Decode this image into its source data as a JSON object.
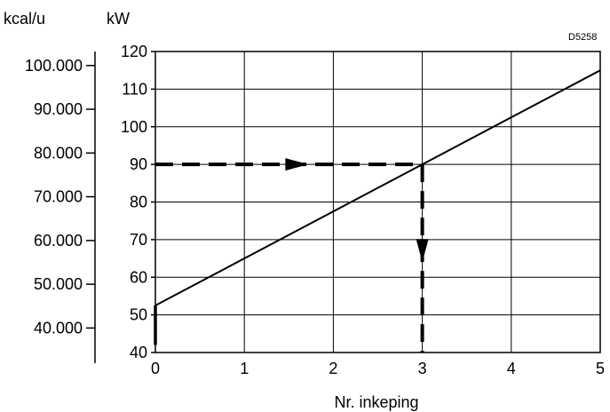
{
  "chart_data": {
    "type": "line",
    "reference_code": "D5258",
    "xlabel": "Nr. inkeping",
    "xlim": [
      0,
      5
    ],
    "x_ticks": [
      "0",
      "1",
      "2",
      "3",
      "4",
      "5"
    ],
    "y_right": {
      "unit": "kW",
      "ylim": [
        40,
        120
      ],
      "ticks": [
        "40",
        "50",
        "60",
        "70",
        "80",
        "90",
        "100",
        "110",
        "120"
      ]
    },
    "y_left": {
      "unit": "kcal/u",
      "ticks": [
        "40.000",
        "50.000",
        "60.000",
        "70.000",
        "80.000",
        "90.000",
        "100.000"
      ]
    },
    "grid": true,
    "series": [
      {
        "x": [
          0,
          5
        ],
        "y": [
          52.5,
          115
        ]
      }
    ],
    "annotation": {
      "style": "dashed-arrows",
      "y_value": 90,
      "x_value": 3,
      "x_bottom_kw": 40
    },
    "left_bar": {
      "x": 0,
      "y_from": 42,
      "y_to": 52.5
    }
  }
}
